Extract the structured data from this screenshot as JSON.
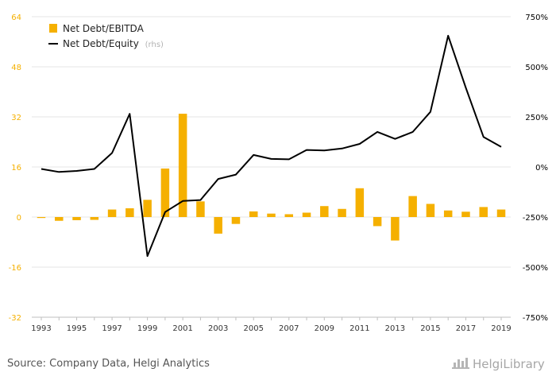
{
  "chart_data": {
    "type": "bar+line",
    "x": [
      1993,
      1994,
      1995,
      1996,
      1997,
      1998,
      1999,
      2000,
      2001,
      2002,
      2003,
      2004,
      2005,
      2006,
      2007,
      2008,
      2009,
      2010,
      2011,
      2012,
      2013,
      2014,
      2015,
      2016,
      2017,
      2018,
      2019
    ],
    "x_tick_labels": [
      "1993",
      "1995",
      "1997",
      "1999",
      "2001",
      "2003",
      "2005",
      "2007",
      "2009",
      "2011",
      "2013",
      "2015",
      "2017",
      "2019"
    ],
    "series": [
      {
        "name": "Net Debt/EBITDA",
        "type": "bar",
        "axis": "left",
        "color": "#f5b000",
        "values": [
          -0.3,
          -1.2,
          -1.0,
          -0.9,
          2.4,
          2.8,
          5.5,
          15.5,
          33.0,
          5.0,
          -5.3,
          -2.2,
          1.8,
          1.1,
          0.9,
          1.4,
          3.5,
          2.6,
          9.2,
          -2.9,
          -7.5,
          6.7,
          4.2,
          2.1,
          1.7,
          3.2,
          2.4
        ]
      },
      {
        "name": "Net Debt/Equity",
        "legend_suffix": "(rhs)",
        "type": "line",
        "axis": "right",
        "color": "#000000",
        "values": [
          -10,
          -25,
          -20,
          -10,
          70,
          265,
          -445,
          -225,
          -170,
          -165,
          -60,
          -38,
          60,
          40,
          38,
          85,
          82,
          92,
          115,
          175,
          140,
          175,
          275,
          655,
          395,
          150,
          100
        ]
      }
    ],
    "left_axis": {
      "ylim": [
        -32,
        64
      ],
      "ticks": [
        "64",
        "48",
        "32",
        "16",
        "0",
        "-16",
        "-32"
      ],
      "tick_color": "#f5b000"
    },
    "right_axis": {
      "ylim": [
        -750,
        750
      ],
      "ticks": [
        "750%",
        "500%",
        "250%",
        "0%",
        "-250%",
        "-500%",
        "-750%"
      ]
    },
    "grid": true,
    "legend_position": "top-left"
  },
  "footer": {
    "source": "Source: Company Data, Helgi Analytics",
    "logo_text": "HelgiLibrary"
  }
}
